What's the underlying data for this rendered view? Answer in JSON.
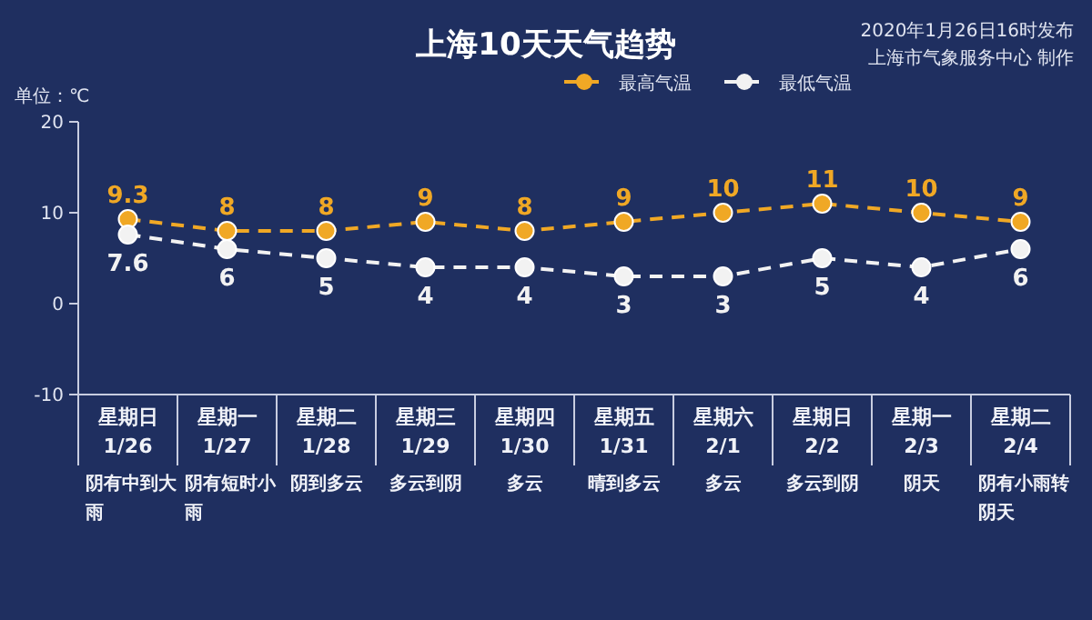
{
  "chart_data": {
    "type": "line",
    "title": "上海10天天气趋势",
    "ylabel": "单位：℃",
    "annotations": [
      "2020年1月26日16时发布",
      "上海市气象服务中心 制作"
    ],
    "categories": [
      "星期日\n1/26\n阴有中到大雨",
      "星期一\n1/27\n阴有短时小雨",
      "星期二\n1/28\n阴到多云",
      "星期三\n1/29\n多云到阴",
      "星期四\n1/30\n多云",
      "星期五\n1/31\n晴到多云",
      "星期六\n2/1\n多云",
      "星期日\n2/2\n多云到阴",
      "星期一\n2/3\n阴天",
      "星期二\n2/4\n阴有小雨转阴天"
    ],
    "series": [
      {
        "name": "最高气温",
        "color": "#f0a825",
        "values": [
          9.3,
          8,
          8,
          9,
          8,
          9,
          10,
          11,
          10,
          9
        ]
      },
      {
        "name": "最低气温",
        "color": "#f2f2f2",
        "values": [
          7.6,
          6,
          5,
          4,
          4,
          3,
          3,
          5,
          4,
          6
        ]
      }
    ],
    "ylim": [
      -10,
      20
    ],
    "yticks": [
      -10,
      0,
      10,
      20
    ],
    "marker": "circle",
    "line_style": "dashed",
    "data_labels": true,
    "legend": "top",
    "grid": false
  }
}
